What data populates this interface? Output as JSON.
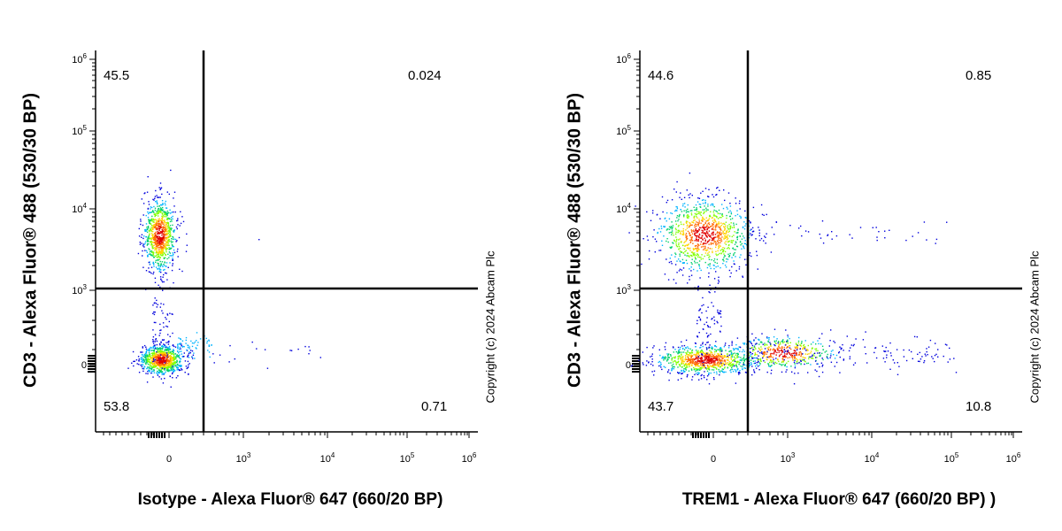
{
  "copyright": "Copyright (c) 2024 Abcam Plc",
  "chart_data": [
    {
      "type": "scatter",
      "title": "",
      "xlabel": "Isotype - Alexa Fluor® 647 (660/20 BP)",
      "ylabel": "CD3 - Alexa Fluor® 488 (530/30 BP)",
      "x_scale": "biexponential",
      "y_scale": "biexponential",
      "x_ticks": [
        "0",
        "10^3",
        "10^4",
        "10^5",
        "10^6"
      ],
      "y_ticks": [
        "0",
        "10^3",
        "10^4",
        "10^5",
        "10^6"
      ],
      "quadrant_gate": {
        "x": 300,
        "y": 1000
      },
      "quadrants": {
        "upper_left": "45.5",
        "upper_right": "0.024",
        "lower_left": "53.8",
        "lower_right": "0.71"
      },
      "populations": [
        {
          "name": "CD3+",
          "x_center": 0,
          "y_center": 4500
        },
        {
          "name": "CD3-",
          "x_center": 0,
          "y_center": 0
        }
      ]
    },
    {
      "type": "scatter",
      "title": "",
      "xlabel": "TREM1 - Alexa Fluor® 647 (660/20 BP) )",
      "ylabel": "CD3 - Alexa Fluor® 488 (530/30 BP)",
      "x_scale": "biexponential",
      "y_scale": "biexponential",
      "x_ticks": [
        "0",
        "10^3",
        "10^4",
        "10^5",
        "10^6"
      ],
      "y_ticks": [
        "0",
        "10^3",
        "10^4",
        "10^5",
        "10^6"
      ],
      "quadrant_gate": {
        "x": 300,
        "y": 1000
      },
      "quadrants": {
        "upper_left": "44.6",
        "upper_right": "0.85",
        "lower_left": "43.7",
        "lower_right": "10.8"
      },
      "populations": [
        {
          "name": "CD3+",
          "x_center": 0,
          "y_center": 4500
        },
        {
          "name": "CD3-",
          "x_center": 0,
          "y_center": 0
        },
        {
          "name": "CD3- TREM1+",
          "x_center": 1000,
          "y_center": 0
        }
      ]
    }
  ]
}
